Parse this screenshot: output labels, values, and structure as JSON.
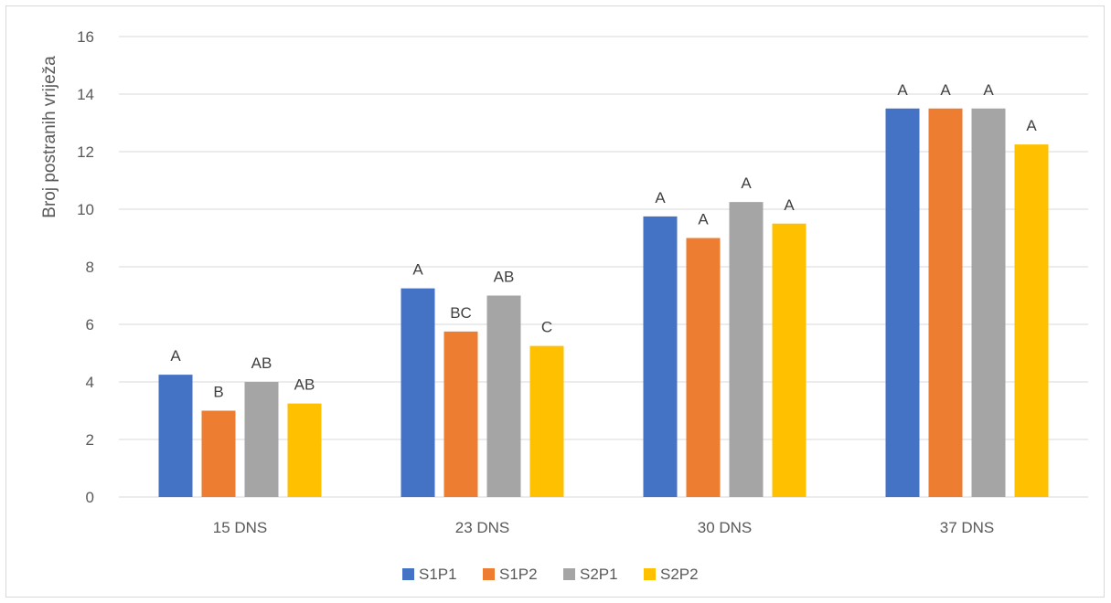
{
  "chart_data": {
    "type": "bar",
    "title": "",
    "xlabel": "",
    "ylabel": "Broj postranih vriježa",
    "ylim": [
      0,
      16
    ],
    "yticks": [
      0,
      2,
      4,
      6,
      8,
      10,
      12,
      14,
      16
    ],
    "grid": true,
    "legend_position": "bottom",
    "categories": [
      "15 DNS",
      "23 DNS",
      "30 DNS",
      "37 DNS"
    ],
    "series": [
      {
        "name": "S1P1",
        "color": "#4472C4",
        "values": [
          4.25,
          7.25,
          9.75,
          13.5
        ],
        "labels": [
          "A",
          "A",
          "A",
          "A"
        ]
      },
      {
        "name": "S1P2",
        "color": "#ED7D31",
        "values": [
          3.0,
          5.75,
          9.0,
          13.5
        ],
        "labels": [
          "B",
          "BC",
          "A",
          "A"
        ]
      },
      {
        "name": "S2P1",
        "color": "#A5A5A5",
        "values": [
          4.0,
          7.0,
          10.25,
          13.5
        ],
        "labels": [
          "AB",
          "AB",
          "A",
          "A"
        ]
      },
      {
        "name": "S2P2",
        "color": "#FFC000",
        "values": [
          3.25,
          5.25,
          9.5,
          12.25
        ],
        "labels": [
          "AB",
          "C",
          "A",
          "A"
        ]
      }
    ]
  }
}
